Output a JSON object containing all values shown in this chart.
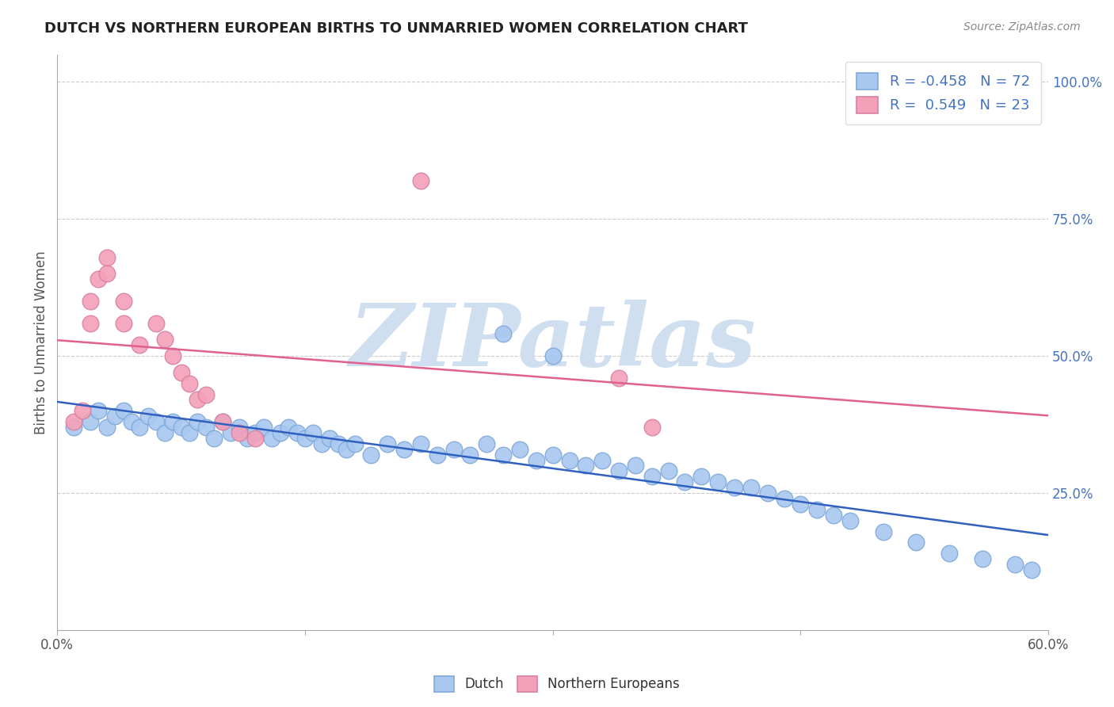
{
  "title": "DUTCH VS NORTHERN EUROPEAN BIRTHS TO UNMARRIED WOMEN CORRELATION CHART",
  "source": "Source: ZipAtlas.com",
  "ylabel": "Births to Unmarried Women",
  "right_yticks": [
    "100.0%",
    "75.0%",
    "50.0%",
    "25.0%"
  ],
  "right_ytick_vals": [
    1.0,
    0.75,
    0.5,
    0.25
  ],
  "xmin": 0.0,
  "xmax": 0.6,
  "ymin": 0.0,
  "ymax": 1.05,
  "dutch_R": -0.458,
  "dutch_N": 72,
  "northern_R": 0.549,
  "northern_N": 23,
  "dutch_color": "#a8c8f0",
  "northern_color": "#f4a0b8",
  "dutch_line_color": "#3060c0",
  "northern_line_color": "#e06090",
  "dutch_marker_edge": "#80a8d8",
  "northern_marker_edge": "#d880a0",
  "legend_dutch_face": "#a8c8f0",
  "legend_northern_face": "#f4a0b8",
  "watermark_color": "#d0dff0",
  "dutch_x": [
    0.01,
    0.02,
    0.025,
    0.03,
    0.035,
    0.04,
    0.045,
    0.05,
    0.055,
    0.06,
    0.065,
    0.07,
    0.075,
    0.08,
    0.085,
    0.09,
    0.095,
    0.1,
    0.105,
    0.11,
    0.115,
    0.12,
    0.125,
    0.13,
    0.135,
    0.14,
    0.145,
    0.15,
    0.155,
    0.16,
    0.165,
    0.17,
    0.175,
    0.18,
    0.19,
    0.2,
    0.21,
    0.22,
    0.23,
    0.24,
    0.25,
    0.26,
    0.27,
    0.28,
    0.29,
    0.3,
    0.31,
    0.32,
    0.33,
    0.34,
    0.35,
    0.36,
    0.37,
    0.38,
    0.39,
    0.4,
    0.41,
    0.42,
    0.43,
    0.44,
    0.45,
    0.46,
    0.47,
    0.48,
    0.5,
    0.52,
    0.54,
    0.56,
    0.58,
    0.59,
    0.27,
    0.3
  ],
  "dutch_y": [
    0.37,
    0.38,
    0.4,
    0.37,
    0.39,
    0.4,
    0.38,
    0.37,
    0.39,
    0.38,
    0.36,
    0.38,
    0.37,
    0.36,
    0.38,
    0.37,
    0.35,
    0.38,
    0.36,
    0.37,
    0.35,
    0.36,
    0.37,
    0.35,
    0.36,
    0.37,
    0.36,
    0.35,
    0.36,
    0.34,
    0.35,
    0.34,
    0.33,
    0.34,
    0.32,
    0.34,
    0.33,
    0.34,
    0.32,
    0.33,
    0.32,
    0.34,
    0.32,
    0.33,
    0.31,
    0.32,
    0.31,
    0.3,
    0.31,
    0.29,
    0.3,
    0.28,
    0.29,
    0.27,
    0.28,
    0.27,
    0.26,
    0.26,
    0.25,
    0.24,
    0.23,
    0.22,
    0.21,
    0.2,
    0.18,
    0.16,
    0.14,
    0.13,
    0.12,
    0.11,
    0.54,
    0.5
  ],
  "northern_x": [
    0.01,
    0.015,
    0.02,
    0.02,
    0.025,
    0.03,
    0.03,
    0.04,
    0.04,
    0.05,
    0.06,
    0.065,
    0.07,
    0.075,
    0.08,
    0.085,
    0.09,
    0.1,
    0.11,
    0.12,
    0.22,
    0.34,
    0.36
  ],
  "northern_y": [
    0.38,
    0.4,
    0.56,
    0.6,
    0.64,
    0.68,
    0.65,
    0.6,
    0.56,
    0.52,
    0.56,
    0.53,
    0.5,
    0.47,
    0.45,
    0.42,
    0.43,
    0.38,
    0.36,
    0.35,
    0.82,
    0.46,
    0.37
  ]
}
